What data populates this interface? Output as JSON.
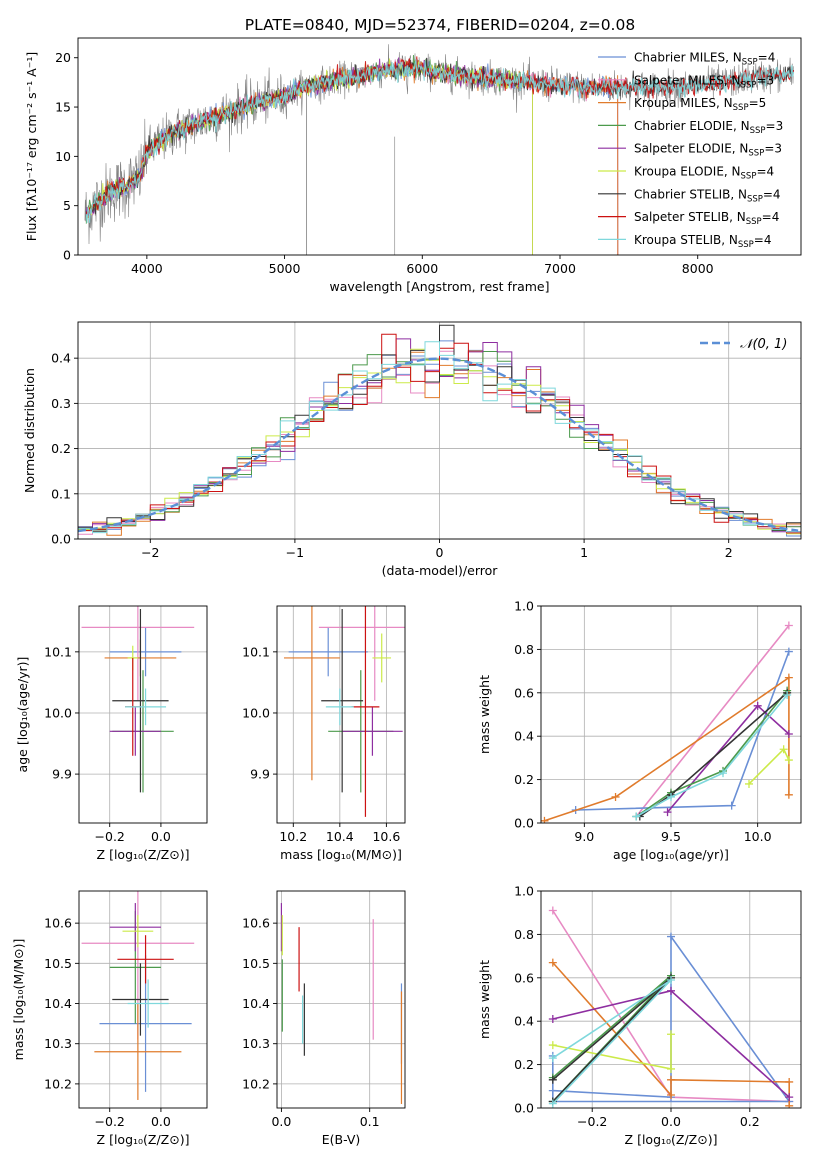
{
  "figure": {
    "title": "PLATE=0840, MJD=52374, FIBERID=0204, z=0.08"
  },
  "chart_data": [
    {
      "id": "spectrum",
      "type": "line",
      "xlabel": "wavelength [Angstrom, rest frame]",
      "ylabel": "Flux [fλ10⁻¹⁷ erg cm⁻² s⁻¹ A⁻¹]",
      "xlim": [
        3500,
        8750
      ],
      "ylim": [
        0,
        22
      ],
      "xticks": [
        4000,
        5000,
        6000,
        7000,
        8000
      ],
      "yticks": [
        0,
        5,
        10,
        15,
        20
      ],
      "legend_position": "right",
      "data_color": "#808080",
      "continuum": {
        "x": [
          3550,
          3650,
          3750,
          3850,
          3950,
          4000,
          4100,
          4200,
          4300,
          4400,
          4500,
          4600,
          4700,
          4800,
          4900,
          5000,
          5100,
          5200,
          5300,
          5400,
          5500,
          5600,
          5700,
          5800,
          5900,
          6000,
          6200,
          6400,
          6600,
          6800,
          7000,
          7200,
          7400,
          7600,
          7800,
          8000,
          8200,
          8400,
          8700
        ],
        "y": [
          4.0,
          5.5,
          6.5,
          7.0,
          8.0,
          10.5,
          11.5,
          12.5,
          13.0,
          13.5,
          14.0,
          14.5,
          15.0,
          15.5,
          15.8,
          16.0,
          16.8,
          17.2,
          17.5,
          17.8,
          18.0,
          18.3,
          18.6,
          18.8,
          19.0,
          18.8,
          18.3,
          18.0,
          17.8,
          17.5,
          17.2,
          17.0,
          17.0,
          17.0,
          17.0,
          17.2,
          17.5,
          18.0,
          18.3
        ]
      },
      "models": [
        {
          "name": "Chabrier MILES",
          "nssp": "4",
          "color": "#6a8fd5",
          "xmax": 7420
        },
        {
          "name": "Salpeter MILES",
          "nssp": "3",
          "color": "#e78ac3",
          "xmax": 7420
        },
        {
          "name": "Kroupa MILES",
          "nssp": "5",
          "color": "#e07b2c",
          "xmax": 7420
        },
        {
          "name": "Chabrier ELODIE",
          "nssp": "3",
          "color": "#4c9a4c",
          "xmax": 6800
        },
        {
          "name": "Salpeter ELODIE",
          "nssp": "3",
          "color": "#8e2ea0",
          "xmax": 6800
        },
        {
          "name": "Kroupa ELODIE",
          "nssp": "4",
          "color": "#ccea49",
          "xmax": 6800
        },
        {
          "name": "Chabrier STELIB",
          "nssp": "4",
          "color": "#333333",
          "xmax": 8700
        },
        {
          "name": "Salpeter STELIB",
          "nssp": "4",
          "color": "#cc1111",
          "xmax": 8700
        },
        {
          "name": "Kroupa STELIB",
          "nssp": "4",
          "color": "#7fd8dc",
          "xmax": 8700
        }
      ],
      "nssp_label": "N",
      "nssp_sub": "SSP"
    },
    {
      "id": "residuals",
      "type": "step",
      "xlabel": "(data-model)/error",
      "ylabel": "Normed distribution",
      "xlim": [
        -2.5,
        2.5
      ],
      "ylim": [
        0,
        0.48
      ],
      "xticks": [
        -2,
        -1,
        0,
        1,
        2
      ],
      "yticks": [
        0.0,
        0.1,
        0.2,
        0.3,
        0.4
      ],
      "legend": "𝒩(0, 1)",
      "normal_color": "#5b8fd6",
      "bin_width": 0.1
    },
    {
      "id": "age-vs-Z",
      "type": "errorbar",
      "xlabel": "Z [log₁₀(Z/Z⊙)]",
      "ylabel": "age  [log₁₀(age/yr)]",
      "xlim": [
        -0.32,
        0.18
      ],
      "ylim": [
        9.82,
        10.175
      ],
      "xticks": [
        -0.2,
        0.0
      ],
      "yticks": [
        9.9,
        10.0,
        10.1
      ],
      "points": [
        {
          "x": -0.06,
          "y": 10.1,
          "xerr": 0.14,
          "yerr": 0.04,
          "color": "#6a8fd5"
        },
        {
          "x": -0.09,
          "y": 10.14,
          "xerr": 0.22,
          "yerr": 0.12,
          "color": "#e78ac3"
        },
        {
          "x": -0.08,
          "y": 10.09,
          "xerr": 0.14,
          "yerr": 0.03,
          "color": "#e07b2c"
        },
        {
          "x": -0.07,
          "y": 9.97,
          "xerr": 0.12,
          "yerr": 0.1,
          "color": "#4c9a4c"
        },
        {
          "x": -0.1,
          "y": 9.97,
          "xerr": 0.1,
          "yerr": 0.04,
          "color": "#8e2ea0"
        },
        {
          "x": -0.11,
          "y": 10.09,
          "xerr": 0.02,
          "yerr": 0.02,
          "color": "#ccea49"
        },
        {
          "x": -0.08,
          "y": 10.02,
          "xerr": 0.11,
          "yerr": 0.15,
          "color": "#333333"
        },
        {
          "x": -0.11,
          "y": 10.01,
          "xerr": 0.03,
          "yerr": 0.08,
          "color": "#cc1111"
        },
        {
          "x": -0.06,
          "y": 10.01,
          "xerr": 0.08,
          "yerr": 0.03,
          "color": "#7fd8dc"
        }
      ]
    },
    {
      "id": "age-vs-mass",
      "type": "errorbar",
      "xlabel": "mass [log₁₀(M/M⊙)]",
      "ylabel": "",
      "xlim": [
        10.13,
        10.68
      ],
      "ylim": [
        9.82,
        10.175
      ],
      "xticks": [
        10.2,
        10.4,
        10.6
      ],
      "yticks": [
        9.9,
        10.0,
        10.1
      ],
      "points": [
        {
          "x": 10.35,
          "y": 10.1,
          "xerr": 0.17,
          "yerr": 0.04,
          "color": "#6a8fd5"
        },
        {
          "x": 10.55,
          "y": 10.14,
          "xerr": 0.24,
          "yerr": 0.12,
          "color": "#e78ac3"
        },
        {
          "x": 10.28,
          "y": 10.09,
          "xerr": 0.12,
          "yerr": 0.2,
          "color": "#e07b2c"
        },
        {
          "x": 10.49,
          "y": 9.97,
          "xerr": 0.14,
          "yerr": 0.1,
          "color": "#4c9a4c"
        },
        {
          "x": 10.54,
          "y": 9.97,
          "xerr": 0.13,
          "yerr": 0.04,
          "color": "#8e2ea0"
        },
        {
          "x": 10.58,
          "y": 10.09,
          "xerr": 0.04,
          "yerr": 0.04,
          "color": "#ccea49"
        },
        {
          "x": 10.41,
          "y": 10.02,
          "xerr": 0.09,
          "yerr": 0.15,
          "color": "#333333"
        },
        {
          "x": 10.51,
          "y": 10.01,
          "xerr": 0.06,
          "yerr": 0.18,
          "color": "#cc1111"
        },
        {
          "x": 10.4,
          "y": 10.01,
          "xerr": 0.06,
          "yerr": 0.03,
          "color": "#7fd8dc"
        }
      ]
    },
    {
      "id": "mass-weight-vs-age",
      "type": "line",
      "xlabel": "age  [log₁₀(age/yr)]",
      "ylabel": "mass weight",
      "xlim": [
        8.75,
        10.25
      ],
      "ylim": [
        0,
        1.0
      ],
      "xticks": [
        9.0,
        9.5,
        10.0
      ],
      "yticks": [
        0.0,
        0.2,
        0.4,
        0.6,
        0.8,
        1.0
      ],
      "series": [
        {
          "color": "#e78ac3",
          "x": [
            9.3,
            10.18
          ],
          "y": [
            0.03,
            0.91
          ]
        },
        {
          "color": "#6a8fd5",
          "x": [
            8.95,
            9.85,
            10.18
          ],
          "y": [
            0.06,
            0.08,
            0.79
          ]
        },
        {
          "color": "#e07b2c",
          "x": [
            8.77,
            9.18,
            10.18,
            10.18
          ],
          "y": [
            0.01,
            0.12,
            0.67,
            0.13
          ]
        },
        {
          "color": "#8e2ea0",
          "x": [
            9.48,
            10.0,
            10.18
          ],
          "y": [
            0.05,
            0.54,
            0.41
          ]
        },
        {
          "color": "#ccea49",
          "x": [
            9.95,
            10.15,
            10.18
          ],
          "y": [
            0.18,
            0.34,
            0.29
          ]
        },
        {
          "color": "#4c9a4c",
          "x": [
            9.3,
            9.5,
            9.8,
            10.17
          ],
          "y": [
            0.03,
            0.14,
            0.24,
            0.61
          ]
        },
        {
          "color": "#333333",
          "x": [
            9.32,
            9.5,
            10.17
          ],
          "y": [
            0.03,
            0.13,
            0.6
          ]
        },
        {
          "color": "#7fd8dc",
          "x": [
            9.3,
            9.5,
            9.8,
            10.17
          ],
          "y": [
            0.03,
            0.12,
            0.23,
            0.59
          ]
        }
      ]
    },
    {
      "id": "mass-vs-Z",
      "type": "errorbar",
      "xlabel": "Z [log₁₀(Z/Z⊙)]",
      "ylabel": "mass [log₁₀(M/M⊙)]",
      "xlim": [
        -0.32,
        0.18
      ],
      "ylim": [
        10.14,
        10.68
      ],
      "xticks": [
        -0.2,
        0.0
      ],
      "yticks": [
        10.2,
        10.3,
        10.4,
        10.5,
        10.6
      ],
      "points": [
        {
          "x": -0.06,
          "y": 10.35,
          "xerr": 0.18,
          "yerr": 0.17,
          "color": "#6a8fd5"
        },
        {
          "x": -0.09,
          "y": 10.55,
          "xerr": 0.22,
          "yerr": 0.24,
          "color": "#e78ac3"
        },
        {
          "x": -0.09,
          "y": 10.28,
          "xerr": 0.17,
          "yerr": 0.12,
          "color": "#e07b2c"
        },
        {
          "x": -0.1,
          "y": 10.49,
          "xerr": 0.1,
          "yerr": 0.14,
          "color": "#4c9a4c"
        },
        {
          "x": -0.1,
          "y": 10.59,
          "xerr": 0.1,
          "yerr": 0.06,
          "color": "#8e2ea0"
        },
        {
          "x": -0.09,
          "y": 10.58,
          "xerr": 0.06,
          "yerr": 0.04,
          "color": "#ccea49"
        },
        {
          "x": -0.08,
          "y": 10.41,
          "xerr": 0.11,
          "yerr": 0.09,
          "color": "#333333"
        },
        {
          "x": -0.06,
          "y": 10.51,
          "xerr": 0.11,
          "yerr": 0.06,
          "color": "#cc1111"
        },
        {
          "x": -0.05,
          "y": 10.4,
          "xerr": 0.08,
          "yerr": 0.06,
          "color": "#7fd8dc"
        }
      ]
    },
    {
      "id": "mass-vs-EBV",
      "type": "errorbar",
      "xlabel": "E(B-V)",
      "ylabel": "",
      "xlim": [
        -0.005,
        0.14
      ],
      "ylim": [
        10.14,
        10.68
      ],
      "xticks": [
        0.0,
        0.1
      ],
      "yticks": [
        10.2,
        10.3,
        10.4,
        10.5,
        10.6
      ],
      "points": [
        {
          "x": 0.136,
          "y": 10.35,
          "xerr": 0,
          "yerr": 0.1,
          "color": "#6a8fd5"
        },
        {
          "x": 0.104,
          "y": 10.46,
          "xerr": 0,
          "yerr": 0.15,
          "color": "#e78ac3"
        },
        {
          "x": 0.136,
          "y": 10.29,
          "xerr": 0,
          "yerr": 0.14,
          "color": "#e07b2c"
        },
        {
          "x": 0.001,
          "y": 10.42,
          "xerr": 0,
          "yerr": 0.09,
          "color": "#4c9a4c"
        },
        {
          "x": 0.0,
          "y": 10.59,
          "xerr": 0,
          "yerr": 0.06,
          "color": "#8e2ea0"
        },
        {
          "x": 0.001,
          "y": 10.57,
          "xerr": 0,
          "yerr": 0.05,
          "color": "#ccea49"
        },
        {
          "x": 0.026,
          "y": 10.36,
          "xerr": 0,
          "yerr": 0.09,
          "color": "#333333"
        },
        {
          "x": 0.02,
          "y": 10.51,
          "xerr": 0,
          "yerr": 0.08,
          "color": "#cc1111"
        },
        {
          "x": 0.024,
          "y": 10.36,
          "xerr": 0,
          "yerr": 0.06,
          "color": "#7fd8dc"
        }
      ]
    },
    {
      "id": "mass-weight-vs-Z",
      "type": "line",
      "xlabel": "Z [log₁₀(Z/Z⊙)]",
      "ylabel": "mass weight",
      "xlim": [
        -0.33,
        0.33
      ],
      "ylim": [
        0,
        1.0
      ],
      "xticks": [
        -0.2,
        0.0,
        0.2
      ],
      "yticks": [
        0.0,
        0.2,
        0.4,
        0.6,
        0.8,
        1.0
      ],
      "series": [
        {
          "color": "#e78ac3",
          "x": [
            -0.3,
            0.0,
            0.3
          ],
          "y": [
            0.91,
            0.05,
            0.03
          ]
        },
        {
          "color": "#6a8fd5",
          "x": [
            -0.3,
            0.0,
            0.0,
            0.3,
            -0.3,
            -0.3
          ],
          "y": [
            0.08,
            0.05,
            0.79,
            0.03,
            0.03,
            0.24
          ]
        },
        {
          "color": "#e07b2c",
          "x": [
            -0.3,
            0.0,
            0.0,
            0.3,
            0.3
          ],
          "y": [
            0.67,
            0.06,
            0.13,
            0.12,
            0.01
          ]
        },
        {
          "color": "#8e2ea0",
          "x": [
            -0.3,
            0.0,
            0.3
          ],
          "y": [
            0.41,
            0.54,
            0.05
          ]
        },
        {
          "color": "#ccea49",
          "x": [
            -0.3,
            0.0,
            0.0
          ],
          "y": [
            0.29,
            0.18,
            0.34
          ]
        },
        {
          "color": "#4c9a4c",
          "x": [
            -0.3,
            0.0,
            -0.3
          ],
          "y": [
            0.03,
            0.61,
            0.14
          ]
        },
        {
          "color": "#333333",
          "x": [
            -0.3,
            0.0,
            -0.3
          ],
          "y": [
            0.03,
            0.6,
            0.13
          ]
        },
        {
          "color": "#7fd8dc",
          "x": [
            -0.3,
            0.0,
            -0.3
          ],
          "y": [
            0.02,
            0.59,
            0.23
          ]
        }
      ]
    }
  ]
}
